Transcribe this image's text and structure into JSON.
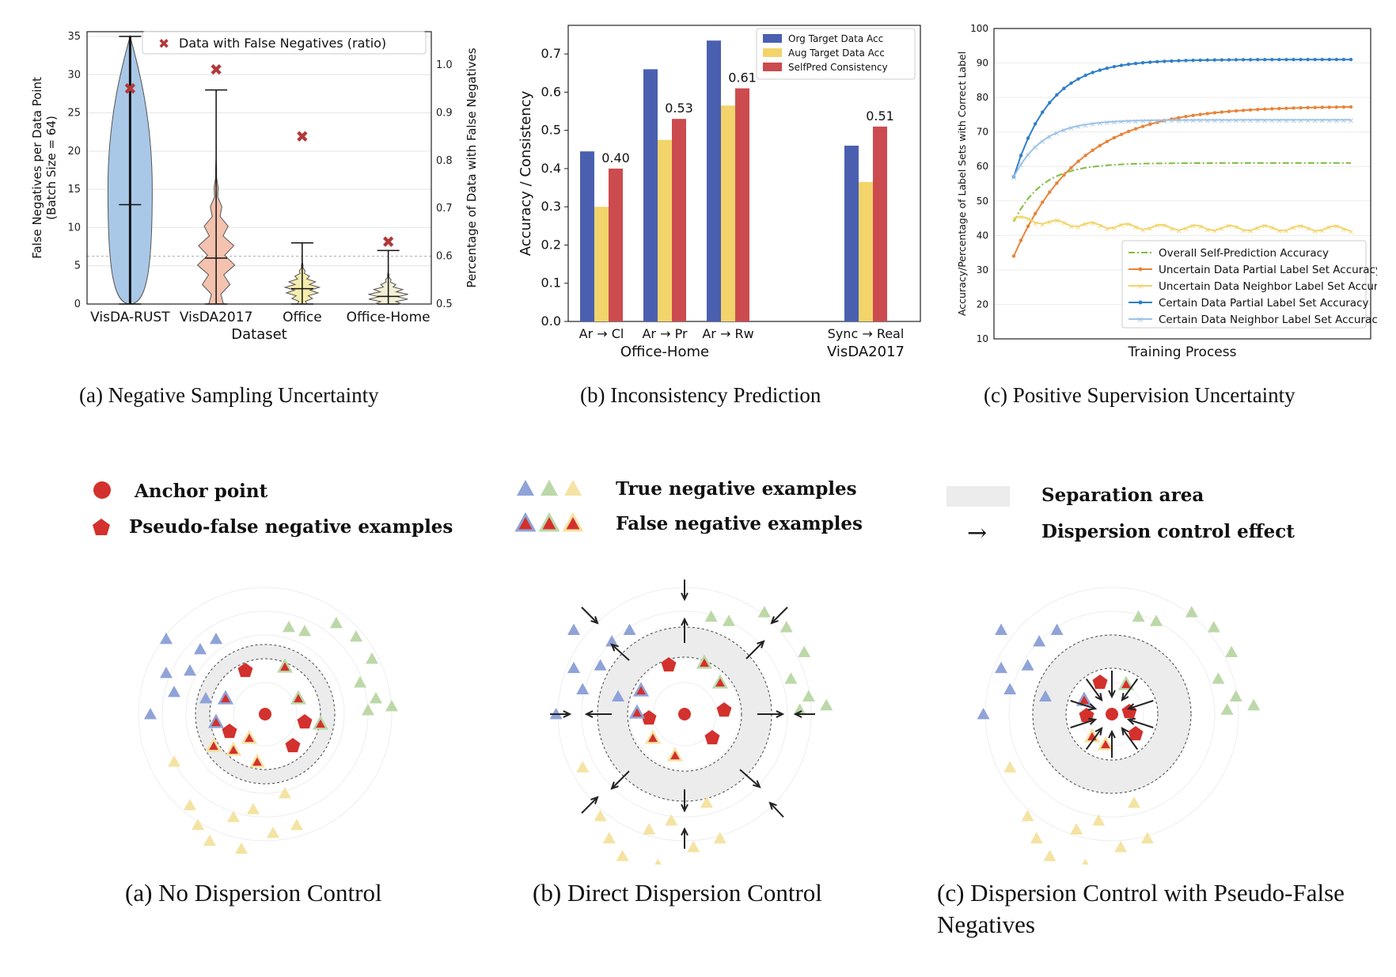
{
  "figure_top": {
    "a": {
      "caption": "(a) Negative Sampling Uncertainty",
      "legend": "Data with False Negatives (ratio)",
      "xlabel": "Dataset",
      "ylabel_left": "False Negatives per Data Point",
      "ylabel_left2": "(Batch Size = 64)",
      "ylabel_right": "Percentage of Data with False Negatives"
    },
    "b": {
      "caption": "(b) Inconsistency Prediction",
      "ylabel": "Accuracy / Consistency"
    },
    "c": {
      "caption": "(c) Positive Supervision Uncertainty",
      "xlabel": "Training Process",
      "ylabel": "Accuracy/Percentage of Label Sets with Correct Label"
    }
  },
  "chart_data": [
    {
      "type": "violin",
      "categories": [
        "VisDA-RUST",
        "VisDA2017",
        "Office",
        "Office-Home"
      ],
      "ylim": [
        0,
        35
      ],
      "yticks": [
        0,
        5,
        10,
        15,
        20,
        25,
        30,
        35
      ],
      "y2lim": [
        0.5,
        1.0
      ],
      "y2ticks": [
        "0.5",
        "0.6",
        "0.7",
        "0.8",
        "0.9",
        "1.0"
      ],
      "violins": [
        {
          "min": 0,
          "max": 35,
          "median": 13,
          "color": "#a9c8e8"
        },
        {
          "min": 0,
          "max": 28,
          "median": 6,
          "color": "#f4c2ae"
        },
        {
          "min": 0,
          "max": 8,
          "median": 2,
          "color": "#f6ecae"
        },
        {
          "min": 0,
          "max": 7,
          "median": 1,
          "color": "#f4efd6"
        }
      ],
      "ratio_markers": [
        0.95,
        0.99,
        0.85,
        0.63
      ],
      "grid": true,
      "legend_position": "top-right"
    },
    {
      "type": "bar",
      "categories": [
        "Ar → Cl",
        "Ar → Pr",
        "Ar → Rw",
        "Sync → Real"
      ],
      "group_labels": [
        "Office-Home",
        "VisDA2017"
      ],
      "series": [
        {
          "name": "Org Target Data Acc",
          "color": "#4a5fb0",
          "values": [
            0.445,
            0.66,
            0.735,
            0.46
          ]
        },
        {
          "name": "Aug Target Data Acc",
          "color": "#f2d46a",
          "values": [
            0.3,
            0.475,
            0.565,
            0.365
          ]
        },
        {
          "name": "SelfPred Consistency",
          "color": "#cc4b4e",
          "values": [
            0.4,
            0.53,
            0.61,
            0.51
          ]
        }
      ],
      "data_labels": [
        "0.40",
        "0.53",
        "0.61",
        "0.51"
      ],
      "ylim": [
        0,
        0.75
      ],
      "yticks": [
        "0.0",
        "0.1",
        "0.2",
        "0.3",
        "0.4",
        "0.5",
        "0.6",
        "0.7"
      ],
      "legend_position": "top-right"
    },
    {
      "type": "line",
      "ylim": [
        10,
        100
      ],
      "yticks": [
        10,
        20,
        30,
        40,
        50,
        60,
        70,
        80,
        90,
        100
      ],
      "series": [
        {
          "name": "Overall Self-Prediction Accuracy",
          "color": "#7fbf3f",
          "style": "dashdot",
          "start": 44,
          "end": 61,
          "rate": 4
        },
        {
          "name": "Uncertain Data Partial Label Set Accuracy",
          "color": "#e8843a",
          "style": "dots",
          "start": 34,
          "end": 77.5,
          "rate": 9
        },
        {
          "name": "Uncertain Data Neighbor Label Set Accuracy",
          "color": "#f2d46a",
          "style": "x",
          "start": 39,
          "end": 42,
          "rate": 2
        },
        {
          "name": "Certain Data Partial Label Set Accuracy",
          "color": "#2f7fc8",
          "style": "dots",
          "start": 57,
          "end": 91,
          "rate": 5
        },
        {
          "name": "Certain Data Neighbor Label Set Accuracy",
          "color": "#9ec2e6",
          "style": "x",
          "start": 57,
          "end": 73.5,
          "rate": 4
        }
      ],
      "grid": true,
      "legend_position": "lower-right"
    }
  ],
  "figure_bottom": {
    "legend": {
      "anchor": "Anchor point",
      "pseudo": "Pseudo-false negative examples",
      "true_neg": "True negative examples",
      "false_neg": "False negative examples",
      "separation": "Separation area",
      "arrow_symbol": "→",
      "dispersion": "Dispersion control effect"
    },
    "caption_a": "(a) No Dispersion Control",
    "caption_b": "(b) Direct Dispersion Control",
    "caption_c": "(c) Dispersion Control with Pseudo-False Negatives",
    "colors": {
      "red": "#d3312d",
      "blue": "#8fa3d8",
      "green": "#bcd8a8",
      "yellow": "#f4e3a2"
    }
  }
}
